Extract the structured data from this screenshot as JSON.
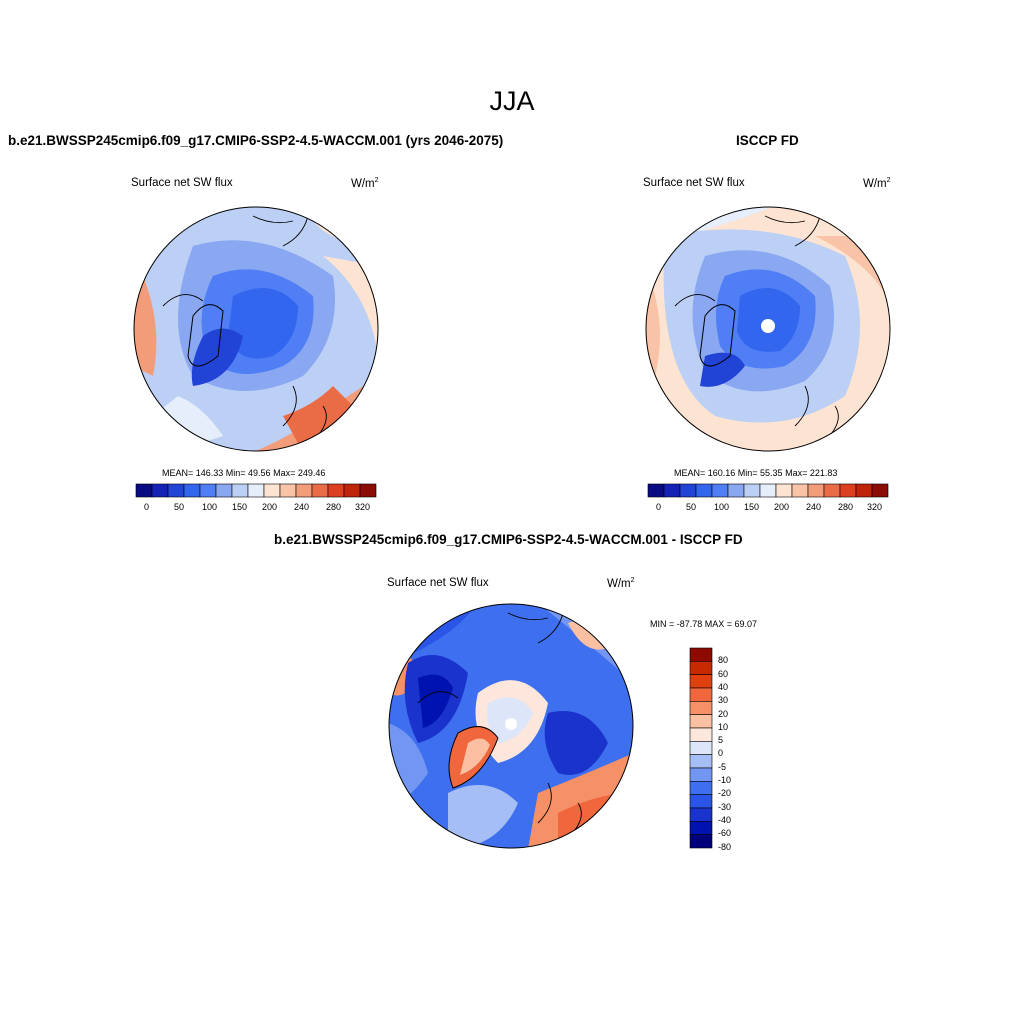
{
  "title": "JJA",
  "panels": [
    {
      "title": "b.e21.BWSSP245cmip6.f09_g17.CMIP6-SSP2-4.5-WACCM.001 (yrs 2046-2075)",
      "variable": "Surface net SW flux",
      "units": "W/m",
      "units_sup": "2",
      "stats": "MEAN= 146.33  Min=  49.56  Max= 249.46",
      "colorbar_labels": [
        "0",
        "50",
        "100",
        "150",
        "200",
        "240",
        "280",
        "320"
      ]
    },
    {
      "title": "ISCCP FD",
      "variable": "Surface net SW flux",
      "units": "W/m",
      "units_sup": "2",
      "stats": "MEAN= 160.16  Min=  55.35  Max= 221.83",
      "colorbar_labels": [
        "0",
        "50",
        "100",
        "150",
        "200",
        "240",
        "280",
        "320"
      ]
    },
    {
      "title": "b.e21.BWSSP245cmip6.f09_g17.CMIP6-SSP2-4.5-WACCM.001 - ISCCP FD",
      "variable": "Surface net SW flux",
      "units": "W/m",
      "units_sup": "2",
      "stats": "MIN = -87.78 MAX =  69.07",
      "colorbar_labels": [
        "80",
        "60",
        "40",
        "30",
        "20",
        "10",
        "5",
        "0",
        "-5",
        "-10",
        "-20",
        "-30",
        "-40",
        "-60",
        "-80"
      ]
    }
  ],
  "colors": {
    "abs_scale": [
      "#0a0a82",
      "#1522b5",
      "#2244d6",
      "#3366ee",
      "#4f7ef5",
      "#8aa8f2",
      "#bcd0f5",
      "#e5eefa",
      "#fde3d2",
      "#f8c3a6",
      "#f29c7a",
      "#ea6c46",
      "#de3f20",
      "#c0250c",
      "#8c0c06"
    ],
    "diff_scale": [
      "#00007a",
      "#0013b0",
      "#1a33cc",
      "#2a55e6",
      "#3e6fef",
      "#7396f2",
      "#a6bef6",
      "#dde6f8",
      "#fde6dc",
      "#fbc0a2",
      "#f69066",
      "#f0663d",
      "#e04010",
      "#c82a00",
      "#8c0a00"
    ]
  }
}
